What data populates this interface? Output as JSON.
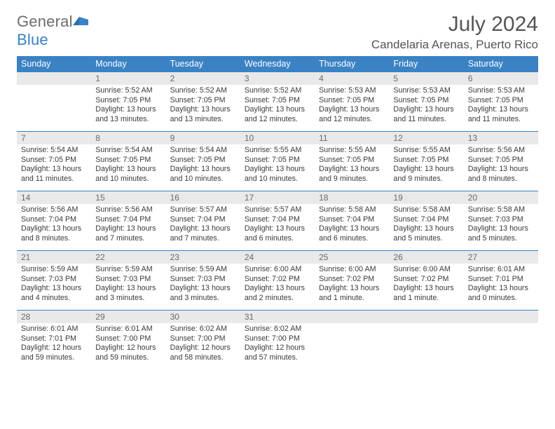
{
  "brand": {
    "part1": "General",
    "part2": "Blue"
  },
  "title": {
    "month": "July 2024",
    "location": "Candelaria Arenas, Puerto Rico"
  },
  "colors": {
    "accent": "#3a82c4",
    "header_text": "#555555",
    "cell_header_bg": "#e9e9e9",
    "body_text": "#3a3a3a"
  },
  "day_names": [
    "Sunday",
    "Monday",
    "Tuesday",
    "Wednesday",
    "Thursday",
    "Friday",
    "Saturday"
  ],
  "weeks": [
    [
      {
        "n": "",
        "sunrise": "",
        "sunset": "",
        "daylight": ""
      },
      {
        "n": "1",
        "sunrise": "Sunrise: 5:52 AM",
        "sunset": "Sunset: 7:05 PM",
        "daylight": "Daylight: 13 hours and 13 minutes."
      },
      {
        "n": "2",
        "sunrise": "Sunrise: 5:52 AM",
        "sunset": "Sunset: 7:05 PM",
        "daylight": "Daylight: 13 hours and 13 minutes."
      },
      {
        "n": "3",
        "sunrise": "Sunrise: 5:52 AM",
        "sunset": "Sunset: 7:05 PM",
        "daylight": "Daylight: 13 hours and 12 minutes."
      },
      {
        "n": "4",
        "sunrise": "Sunrise: 5:53 AM",
        "sunset": "Sunset: 7:05 PM",
        "daylight": "Daylight: 13 hours and 12 minutes."
      },
      {
        "n": "5",
        "sunrise": "Sunrise: 5:53 AM",
        "sunset": "Sunset: 7:05 PM",
        "daylight": "Daylight: 13 hours and 11 minutes."
      },
      {
        "n": "6",
        "sunrise": "Sunrise: 5:53 AM",
        "sunset": "Sunset: 7:05 PM",
        "daylight": "Daylight: 13 hours and 11 minutes."
      }
    ],
    [
      {
        "n": "7",
        "sunrise": "Sunrise: 5:54 AM",
        "sunset": "Sunset: 7:05 PM",
        "daylight": "Daylight: 13 hours and 11 minutes."
      },
      {
        "n": "8",
        "sunrise": "Sunrise: 5:54 AM",
        "sunset": "Sunset: 7:05 PM",
        "daylight": "Daylight: 13 hours and 10 minutes."
      },
      {
        "n": "9",
        "sunrise": "Sunrise: 5:54 AM",
        "sunset": "Sunset: 7:05 PM",
        "daylight": "Daylight: 13 hours and 10 minutes."
      },
      {
        "n": "10",
        "sunrise": "Sunrise: 5:55 AM",
        "sunset": "Sunset: 7:05 PM",
        "daylight": "Daylight: 13 hours and 10 minutes."
      },
      {
        "n": "11",
        "sunrise": "Sunrise: 5:55 AM",
        "sunset": "Sunset: 7:05 PM",
        "daylight": "Daylight: 13 hours and 9 minutes."
      },
      {
        "n": "12",
        "sunrise": "Sunrise: 5:55 AM",
        "sunset": "Sunset: 7:05 PM",
        "daylight": "Daylight: 13 hours and 9 minutes."
      },
      {
        "n": "13",
        "sunrise": "Sunrise: 5:56 AM",
        "sunset": "Sunset: 7:05 PM",
        "daylight": "Daylight: 13 hours and 8 minutes."
      }
    ],
    [
      {
        "n": "14",
        "sunrise": "Sunrise: 5:56 AM",
        "sunset": "Sunset: 7:04 PM",
        "daylight": "Daylight: 13 hours and 8 minutes."
      },
      {
        "n": "15",
        "sunrise": "Sunrise: 5:56 AM",
        "sunset": "Sunset: 7:04 PM",
        "daylight": "Daylight: 13 hours and 7 minutes."
      },
      {
        "n": "16",
        "sunrise": "Sunrise: 5:57 AM",
        "sunset": "Sunset: 7:04 PM",
        "daylight": "Daylight: 13 hours and 7 minutes."
      },
      {
        "n": "17",
        "sunrise": "Sunrise: 5:57 AM",
        "sunset": "Sunset: 7:04 PM",
        "daylight": "Daylight: 13 hours and 6 minutes."
      },
      {
        "n": "18",
        "sunrise": "Sunrise: 5:58 AM",
        "sunset": "Sunset: 7:04 PM",
        "daylight": "Daylight: 13 hours and 6 minutes."
      },
      {
        "n": "19",
        "sunrise": "Sunrise: 5:58 AM",
        "sunset": "Sunset: 7:04 PM",
        "daylight": "Daylight: 13 hours and 5 minutes."
      },
      {
        "n": "20",
        "sunrise": "Sunrise: 5:58 AM",
        "sunset": "Sunset: 7:03 PM",
        "daylight": "Daylight: 13 hours and 5 minutes."
      }
    ],
    [
      {
        "n": "21",
        "sunrise": "Sunrise: 5:59 AM",
        "sunset": "Sunset: 7:03 PM",
        "daylight": "Daylight: 13 hours and 4 minutes."
      },
      {
        "n": "22",
        "sunrise": "Sunrise: 5:59 AM",
        "sunset": "Sunset: 7:03 PM",
        "daylight": "Daylight: 13 hours and 3 minutes."
      },
      {
        "n": "23",
        "sunrise": "Sunrise: 5:59 AM",
        "sunset": "Sunset: 7:03 PM",
        "daylight": "Daylight: 13 hours and 3 minutes."
      },
      {
        "n": "24",
        "sunrise": "Sunrise: 6:00 AM",
        "sunset": "Sunset: 7:02 PM",
        "daylight": "Daylight: 13 hours and 2 minutes."
      },
      {
        "n": "25",
        "sunrise": "Sunrise: 6:00 AM",
        "sunset": "Sunset: 7:02 PM",
        "daylight": "Daylight: 13 hours and 1 minute."
      },
      {
        "n": "26",
        "sunrise": "Sunrise: 6:00 AM",
        "sunset": "Sunset: 7:02 PM",
        "daylight": "Daylight: 13 hours and 1 minute."
      },
      {
        "n": "27",
        "sunrise": "Sunrise: 6:01 AM",
        "sunset": "Sunset: 7:01 PM",
        "daylight": "Daylight: 13 hours and 0 minutes."
      }
    ],
    [
      {
        "n": "28",
        "sunrise": "Sunrise: 6:01 AM",
        "sunset": "Sunset: 7:01 PM",
        "daylight": "Daylight: 12 hours and 59 minutes."
      },
      {
        "n": "29",
        "sunrise": "Sunrise: 6:01 AM",
        "sunset": "Sunset: 7:00 PM",
        "daylight": "Daylight: 12 hours and 59 minutes."
      },
      {
        "n": "30",
        "sunrise": "Sunrise: 6:02 AM",
        "sunset": "Sunset: 7:00 PM",
        "daylight": "Daylight: 12 hours and 58 minutes."
      },
      {
        "n": "31",
        "sunrise": "Sunrise: 6:02 AM",
        "sunset": "Sunset: 7:00 PM",
        "daylight": "Daylight: 12 hours and 57 minutes."
      },
      {
        "n": "",
        "sunrise": "",
        "sunset": "",
        "daylight": ""
      },
      {
        "n": "",
        "sunrise": "",
        "sunset": "",
        "daylight": ""
      },
      {
        "n": "",
        "sunrise": "",
        "sunset": "",
        "daylight": ""
      }
    ]
  ]
}
